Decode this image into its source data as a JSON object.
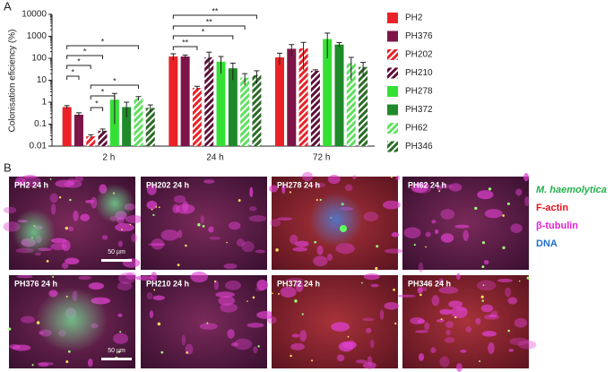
{
  "chart_data": {
    "type": "bar",
    "panel_label": "A",
    "y_label": "Colonisation eficiency (%)",
    "log_scale": true,
    "categories": [
      "2 h",
      "24 h",
      "72 h"
    ],
    "ylim": [
      0.01,
      10000
    ],
    "yticks": [
      0.01,
      0.1,
      1,
      10,
      100,
      1000,
      10000
    ],
    "series": [
      {
        "name": "PH2",
        "color": "#ea2228",
        "pattern": "solid",
        "values": [
          0.6,
          120,
          110
        ],
        "errors": [
          0.1,
          40,
          60
        ]
      },
      {
        "name": "PH376",
        "color": "#7d1548",
        "pattern": "solid",
        "values": [
          0.27,
          120,
          270
        ],
        "errors": [
          0.06,
          20,
          150
        ]
      },
      {
        "name": "PH202",
        "color": "#ea2228",
        "pattern": "hatch",
        "values": [
          0.028,
          4.5,
          280
        ],
        "errors": [
          0.005,
          0.8,
          250
        ]
      },
      {
        "name": "PH210",
        "color": "#5c0f36",
        "pattern": "hatch",
        "values": [
          0.05,
          110,
          27
        ],
        "errors": [
          0.01,
          80,
          3
        ]
      },
      {
        "name": "PH278",
        "color": "#35e035",
        "pattern": "solid",
        "values": [
          1.3,
          70,
          750
        ],
        "errors": [
          1.2,
          50,
          650
        ]
      },
      {
        "name": "PH372",
        "color": "#1f8a2a",
        "pattern": "solid",
        "values": [
          0.6,
          35,
          420
        ],
        "errors": [
          0.4,
          25,
          100
        ]
      },
      {
        "name": "PH62",
        "color": "#5fe05f",
        "pattern": "hatch",
        "values": [
          1.5,
          13,
          60
        ],
        "errors": [
          0.3,
          7,
          50
        ]
      },
      {
        "name": "PH346",
        "color": "#2b6b25",
        "pattern": "hatch",
        "values": [
          0.55,
          17,
          40
        ],
        "errors": [
          0.2,
          10,
          25
        ]
      }
    ],
    "annotations": [
      "*",
      "*",
      "*",
      "*",
      "*",
      "*",
      "*",
      "**",
      "**",
      "*",
      "**"
    ]
  },
  "panel_b": {
    "panel_label": "B",
    "images": [
      "PH2 24 h",
      "PH202 24 h",
      "PH278 24 h",
      "PH62 24 h",
      "PH376 24 h",
      "PH210 24 h",
      "PH372 24 h",
      "PH346 24 h"
    ],
    "scale_bars": [
      "50 µm",
      "50 µm"
    ],
    "channels": [
      {
        "name": "M. haemolytica",
        "color": "#22b14c"
      },
      {
        "name": "F-actin",
        "color": "#e8141c"
      },
      {
        "name": "β-tubulin",
        "color": "#e61fd9"
      },
      {
        "name": "DNA",
        "color": "#1f6fd1"
      }
    ]
  }
}
